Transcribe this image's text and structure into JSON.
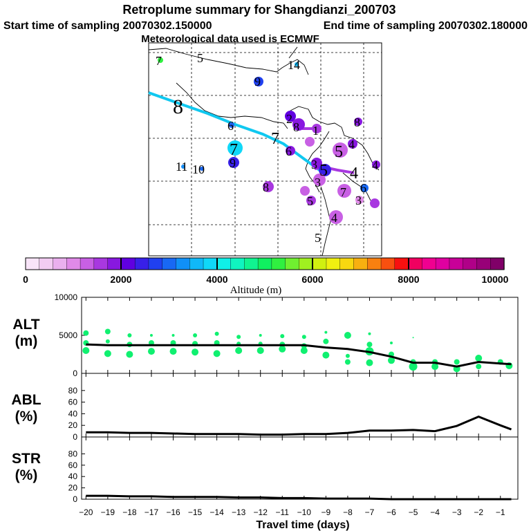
{
  "title": "Retroplume summary for Shangdianzi_200703",
  "subtitle_start": "Start time of sampling 20070302.150000",
  "subtitle_end": "End time of sampling 20070302.180000",
  "subtitle_met": "Meteorological data used is ECMWF",
  "colorbar": {
    "label": "Altitude (m)",
    "ticks": [
      "0",
      "2000",
      "4000",
      "6000",
      "8000",
      "10000"
    ],
    "min": 0,
    "max": 10000,
    "colors": [
      "#f8e4f8",
      "#f2ccf2",
      "#eab0ee",
      "#e08ae8",
      "#c860e4",
      "#a838e0",
      "#8818e0",
      "#6000e0",
      "#3820e8",
      "#2040f0",
      "#1868f4",
      "#1090f8",
      "#10b8f8",
      "#10d8f8",
      "#10f0e8",
      "#10f4c0",
      "#10f490",
      "#10f060",
      "#30f040",
      "#70f030",
      "#a0f020",
      "#d0f010",
      "#f0f010",
      "#f8d810",
      "#f8b010",
      "#f88010",
      "#f85010",
      "#f81010",
      "#f00060",
      "#f00090",
      "#e000a0",
      "#c80098",
      "#b00088",
      "#980078",
      "#800068"
    ]
  },
  "map": {
    "trajectory_color": "#10c8f0",
    "labels": [
      {
        "text": "7",
        "cls": "s"
      },
      {
        "text": "5",
        "cls": "s"
      },
      {
        "text": "14",
        "cls": "s"
      },
      {
        "text": "9",
        "cls": "s"
      },
      {
        "text": "8",
        "cls": "l"
      },
      {
        "text": "6",
        "cls": "s"
      },
      {
        "text": "7",
        "cls": "m"
      },
      {
        "text": "9",
        "cls": "s"
      },
      {
        "text": "11",
        "cls": "s"
      },
      {
        "text": "10",
        "cls": "s"
      },
      {
        "text": "7",
        "cls": "m"
      },
      {
        "text": "2",
        "cls": "s"
      },
      {
        "text": "8",
        "cls": "s"
      },
      {
        "text": "1",
        "cls": "s"
      },
      {
        "text": "6",
        "cls": "s"
      },
      {
        "text": "5",
        "cls": "m"
      },
      {
        "text": "4",
        "cls": "s"
      },
      {
        "text": "4",
        "cls": "s"
      },
      {
        "text": "3",
        "cls": "s"
      },
      {
        "text": "5",
        "cls": "m"
      },
      {
        "text": "4",
        "cls": "m"
      },
      {
        "text": "8",
        "cls": "s"
      },
      {
        "text": "7",
        "cls": "s"
      },
      {
        "text": "6",
        "cls": "s"
      },
      {
        "text": "8",
        "cls": "s"
      },
      {
        "text": "3",
        "cls": "s"
      },
      {
        "text": "5",
        "cls": "s"
      },
      {
        "text": "3",
        "cls": "s"
      },
      {
        "text": "4",
        "cls": "s"
      },
      {
        "text": "5",
        "cls": "s"
      }
    ]
  },
  "chart_data": [
    {
      "type": "line",
      "panel": "ALT",
      "label_top": "ALT",
      "label_bottom": "(m)",
      "x": [
        -20,
        -19,
        -18,
        -17,
        -16,
        -15,
        -14,
        -13,
        -12,
        -11,
        -10,
        -9,
        -8,
        -7,
        -6,
        -5,
        -4,
        -3,
        -2,
        -1,
        -0.5
      ],
      "y": [
        3800,
        3700,
        3700,
        3700,
        3700,
        3700,
        3700,
        3700,
        3700,
        3700,
        3700,
        3400,
        3200,
        2800,
        2200,
        1400,
        1400,
        900,
        1500,
        1300,
        1200
      ],
      "ylim": [
        0,
        10000
      ],
      "ytick_labels": [
        "10000",
        "5000",
        "0"
      ],
      "scatter_color": "#10f070",
      "scatter": [
        {
          "x": -20,
          "y": 5300,
          "r": 4
        },
        {
          "x": -20,
          "y": 4000,
          "r": 4
        },
        {
          "x": -20,
          "y": 3000,
          "r": 5
        },
        {
          "x": -19,
          "y": 5500,
          "r": 4
        },
        {
          "x": -19,
          "y": 4200,
          "r": 3
        },
        {
          "x": -19,
          "y": 2600,
          "r": 5
        },
        {
          "x": -18,
          "y": 5000,
          "r": 3
        },
        {
          "x": -18,
          "y": 3800,
          "r": 4
        },
        {
          "x": -18,
          "y": 2500,
          "r": 5
        },
        {
          "x": -17,
          "y": 5000,
          "r": 2
        },
        {
          "x": -17,
          "y": 4000,
          "r": 4
        },
        {
          "x": -17,
          "y": 2900,
          "r": 5
        },
        {
          "x": -16,
          "y": 5000,
          "r": 2
        },
        {
          "x": -16,
          "y": 4000,
          "r": 4
        },
        {
          "x": -16,
          "y": 2900,
          "r": 5
        },
        {
          "x": -15,
          "y": 5000,
          "r": 3
        },
        {
          "x": -15,
          "y": 3900,
          "r": 4
        },
        {
          "x": -15,
          "y": 2800,
          "r": 5
        },
        {
          "x": -14,
          "y": 5200,
          "r": 3
        },
        {
          "x": -14,
          "y": 4000,
          "r": 4
        },
        {
          "x": -14,
          "y": 2600,
          "r": 5
        },
        {
          "x": -13,
          "y": 4800,
          "r": 3
        },
        {
          "x": -13,
          "y": 3900,
          "r": 3
        },
        {
          "x": -13,
          "y": 3000,
          "r": 5
        },
        {
          "x": -12,
          "y": 5000,
          "r": 2
        },
        {
          "x": -12,
          "y": 3900,
          "r": 3
        },
        {
          "x": -12,
          "y": 3000,
          "r": 5
        },
        {
          "x": -11,
          "y": 4900,
          "r": 3
        },
        {
          "x": -11,
          "y": 3800,
          "r": 4
        },
        {
          "x": -11,
          "y": 3200,
          "r": 5
        },
        {
          "x": -10,
          "y": 4800,
          "r": 3
        },
        {
          "x": -10,
          "y": 3600,
          "r": 4
        },
        {
          "x": -10,
          "y": 3000,
          "r": 5
        },
        {
          "x": -9,
          "y": 5400,
          "r": 2
        },
        {
          "x": -9,
          "y": 4200,
          "r": 4
        },
        {
          "x": -9,
          "y": 2400,
          "r": 5
        },
        {
          "x": -8,
          "y": 5000,
          "r": 5
        },
        {
          "x": -8,
          "y": 2300,
          "r": 3
        },
        {
          "x": -8,
          "y": 1500,
          "r": 4
        },
        {
          "x": -7,
          "y": 5200,
          "r": 2
        },
        {
          "x": -7,
          "y": 3800,
          "r": 4
        },
        {
          "x": -7,
          "y": 2900,
          "r": 6
        },
        {
          "x": -7,
          "y": 1400,
          "r": 5
        },
        {
          "x": -6,
          "y": 4000,
          "r": 2
        },
        {
          "x": -6,
          "y": 2500,
          "r": 4
        },
        {
          "x": -6,
          "y": 1700,
          "r": 5
        },
        {
          "x": -5,
          "y": 4700,
          "r": 1
        },
        {
          "x": -5,
          "y": 1500,
          "r": 4
        },
        {
          "x": -5,
          "y": 900,
          "r": 6
        },
        {
          "x": -4,
          "y": 1500,
          "r": 4
        },
        {
          "x": -4,
          "y": 900,
          "r": 5
        },
        {
          "x": -3,
          "y": 1500,
          "r": 4
        },
        {
          "x": -3,
          "y": 600,
          "r": 5
        },
        {
          "x": -2,
          "y": 2000,
          "r": 5
        },
        {
          "x": -2,
          "y": 900,
          "r": 4
        },
        {
          "x": -1,
          "y": 1500,
          "r": 4
        },
        {
          "x": -0.6,
          "y": 1000,
          "r": 5
        }
      ]
    },
    {
      "type": "line",
      "panel": "ABL",
      "label_top": "ABL",
      "label_bottom": "(%)",
      "x": [
        -20,
        -19,
        -18,
        -17,
        -16,
        -15,
        -14,
        -13,
        -12,
        -11,
        -10,
        -9,
        -8,
        -7,
        -6,
        -5,
        -4,
        -3,
        -2,
        -1,
        -0.5
      ],
      "y": [
        8,
        8,
        7,
        7,
        6,
        5,
        5,
        5,
        4,
        4,
        5,
        5,
        7,
        11,
        11,
        12,
        10,
        19,
        35,
        20,
        13
      ],
      "ylim": [
        0,
        100
      ],
      "ytick_labels": [
        "80",
        "60",
        "40",
        "20",
        "0"
      ]
    },
    {
      "type": "line",
      "panel": "STR",
      "label_top": "STR",
      "label_bottom": "(%)",
      "x": [
        -20,
        -19,
        -18,
        -17,
        -16,
        -15,
        -14,
        -13,
        -12,
        -11,
        -10,
        -9,
        -8,
        -7,
        -6,
        -5,
        -4,
        -3,
        -2,
        -1,
        -0.5
      ],
      "y": [
        6,
        6,
        5,
        5,
        4,
        4,
        4,
        3,
        3,
        2,
        2,
        1,
        1,
        1,
        0,
        0,
        0,
        0,
        0,
        0,
        0
      ],
      "ylim": [
        0,
        100
      ],
      "ytick_labels": [
        "80",
        "60",
        "40",
        "20",
        "0"
      ]
    }
  ],
  "x_axis": {
    "xlabel": "Travel time (days)",
    "tick_labels": [
      "−20",
      "−19",
      "−18",
      "−17",
      "−16",
      "−15",
      "−14",
      "−13",
      "−12",
      "−11",
      "−10",
      "−9",
      "−8",
      "−7",
      "−6",
      "−5",
      "−4",
      "−3",
      "−2",
      "−1"
    ]
  }
}
